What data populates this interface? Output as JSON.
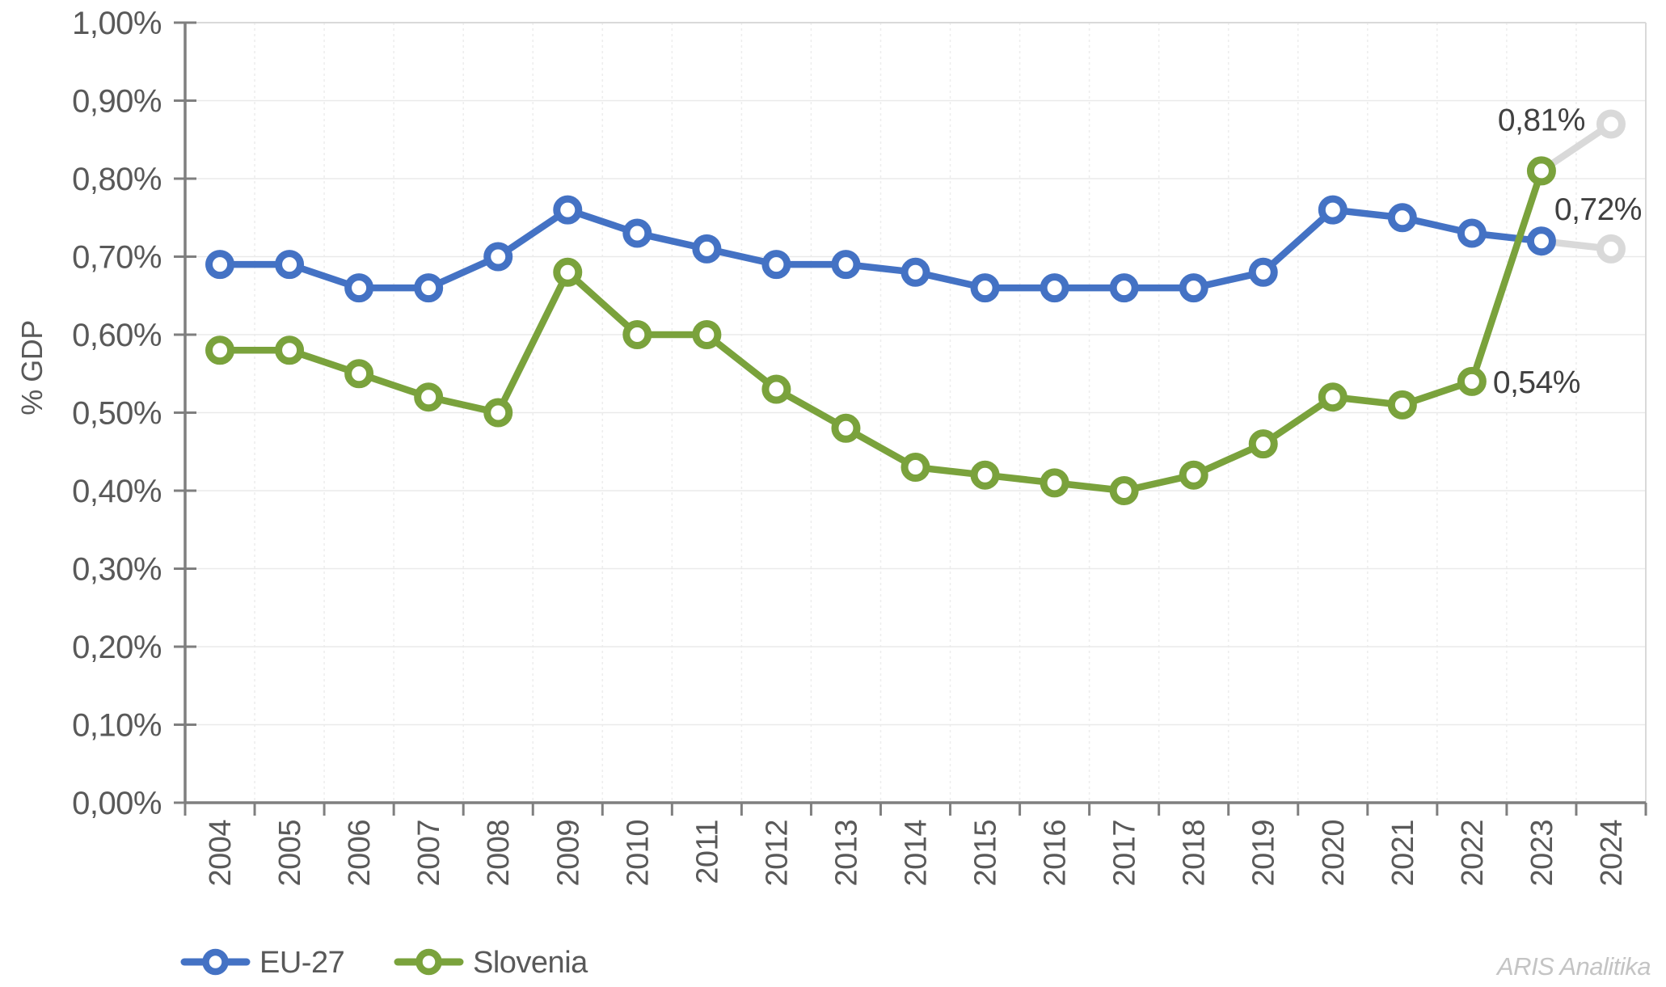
{
  "chart_data": {
    "type": "line",
    "title": "",
    "xlabel": "",
    "ylabel": "% GDP",
    "ylim": [
      0,
      1.0
    ],
    "y_tick_step": 0.1,
    "y_tick_labels": [
      "0,00%",
      "0,10%",
      "0,20%",
      "0,30%",
      "0,40%",
      "0,50%",
      "0,60%",
      "0,70%",
      "0,80%",
      "0,90%",
      "1,00%"
    ],
    "categories": [
      "2004",
      "2005",
      "2006",
      "2007",
      "2008",
      "2009",
      "2010",
      "2011",
      "2012",
      "2013",
      "2014",
      "2015",
      "2016",
      "2017",
      "2018",
      "2019",
      "2020",
      "2021",
      "2022",
      "2023",
      "2024"
    ],
    "series": [
      {
        "name": "EU-27",
        "color": "#4472C4",
        "values": [
          0.69,
          0.69,
          0.66,
          0.66,
          0.7,
          0.76,
          0.73,
          0.71,
          0.69,
          0.69,
          0.68,
          0.66,
          0.66,
          0.66,
          0.66,
          0.68,
          0.76,
          0.75,
          0.73,
          0.72,
          0.71
        ],
        "last_segment_forecast": true
      },
      {
        "name": "Slovenia",
        "color": "#7AA23C",
        "values": [
          0.58,
          0.58,
          0.55,
          0.52,
          0.5,
          0.68,
          0.6,
          0.6,
          0.53,
          0.48,
          0.43,
          0.42,
          0.41,
          0.4,
          0.42,
          0.46,
          0.52,
          0.51,
          0.54,
          0.81,
          0.87
        ],
        "last_segment_forecast": true
      }
    ],
    "forecast_color": "#D9D9D9",
    "grid": true,
    "legend_position": "bottom-left",
    "annotations": [
      {
        "text": "0,81%",
        "series": "Slovenia",
        "category": "2023",
        "value": 0.81,
        "position": "above"
      },
      {
        "text": "0,72%",
        "series": "EU-27",
        "category": "2023",
        "value": 0.72,
        "position": "above-right"
      },
      {
        "text": "0,54%",
        "series": "Slovenia",
        "category": "2022",
        "value": 0.54,
        "position": "right"
      }
    ]
  },
  "legend": {
    "items": [
      {
        "label": "EU-27",
        "color": "#4472C4"
      },
      {
        "label": "Slovenia",
        "color": "#7AA23C"
      }
    ]
  },
  "watermark": {
    "text": "ARIS Analitika",
    "color": "#C4C4C4"
  },
  "style": {
    "axis_color": "#7F7F7F",
    "tick_text_color": "#595959",
    "annotation_color": "#404040",
    "grid_h_color": "#EAEAEA",
    "grid_v_color": "#EDEDED",
    "border_color": "#D9D9D9",
    "background": "#FFFFFF"
  }
}
